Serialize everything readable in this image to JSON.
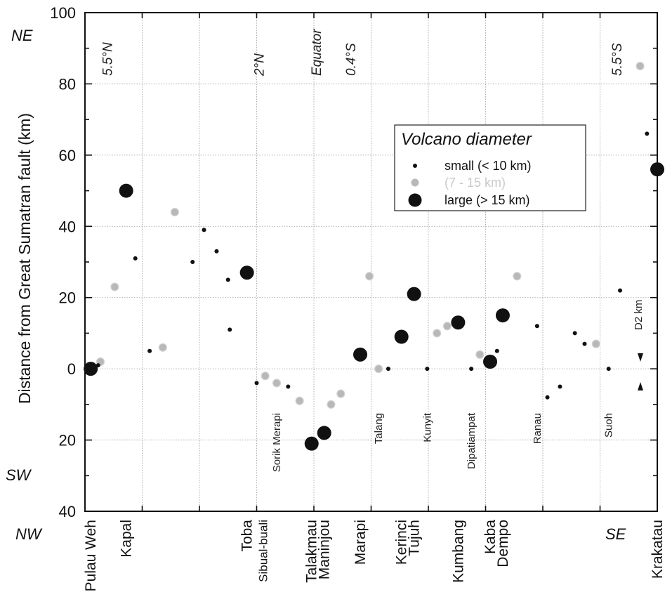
{
  "chart_data": {
    "type": "scatter",
    "ylabel": "Distance from Great Sumatran fault (km)",
    "y_ticks_top": [
      "100",
      "80",
      "60",
      "40",
      "20",
      "0"
    ],
    "y_ticks_bottom": [
      "20",
      "40"
    ],
    "ylim": [
      -40,
      100
    ],
    "direction_labels": {
      "top": "NE",
      "sw": "SW",
      "nw": "NW",
      "se": "SE"
    },
    "latitude_labels": [
      "5.5°N",
      "2°N",
      "Equator",
      "0.4°S",
      "5.5°S"
    ],
    "latitude_x": [
      0.04,
      0.305,
      0.405,
      0.465,
      0.93
    ],
    "in_plot_labels": [
      {
        "name": "Sorik Merapi",
        "x": 0.335
      },
      {
        "name": "Talang",
        "x": 0.513
      },
      {
        "name": "Kunyit",
        "x": 0.598
      },
      {
        "name": "Dipatiampat",
        "x": 0.675
      },
      {
        "name": "Ranau",
        "x": 0.79
      },
      {
        "name": "Suoh",
        "x": 0.915
      }
    ],
    "bottom_labels": [
      {
        "name": "Pulau Weh",
        "x": 0.01
      },
      {
        "name": "Kapal",
        "x": 0.072
      },
      {
        "name": "Toba",
        "x": 0.283
      },
      {
        "name": "Sibual-buali",
        "x": 0.31
      },
      {
        "name": "Talakmau",
        "x": 0.396
      },
      {
        "name": "Maninjou",
        "x": 0.418
      },
      {
        "name": "Marapi",
        "x": 0.481
      },
      {
        "name": "Kerinci",
        "x": 0.553
      },
      {
        "name": "Tujuh",
        "x": 0.575
      },
      {
        "name": "Kumbang",
        "x": 0.652
      },
      {
        "name": "Kaba",
        "x": 0.708
      },
      {
        "name": "Dempo",
        "x": 0.73
      },
      {
        "name": "Krakatau",
        "x": 1.0
      }
    ],
    "legend": {
      "title": "Volcano diameter",
      "entries": [
        {
          "label": "small (< 10 km)",
          "size": "small"
        },
        {
          "label": "(7 - 15 km)",
          "size": "medium"
        },
        {
          "label": "large (> 15 km)",
          "size": "large"
        }
      ]
    },
    "annotation": "D2 km",
    "colors": {
      "small": "#111111",
      "medium": "#b8b8b8",
      "large": "#111111",
      "grid": "#9a9a9a"
    },
    "points": [
      {
        "x": 0.01,
        "y": 0,
        "size": "large"
      },
      {
        "x": 0.027,
        "y": 2,
        "size": "medium"
      },
      {
        "x": 0.023,
        "y": 1,
        "size": "small"
      },
      {
        "x": 0.072,
        "y": 50,
        "size": "large"
      },
      {
        "x": 0.088,
        "y": 31,
        "size": "small"
      },
      {
        "x": 0.052,
        "y": 23,
        "size": "medium"
      },
      {
        "x": 0.113,
        "y": 5,
        "size": "small"
      },
      {
        "x": 0.136,
        "y": 6,
        "size": "medium"
      },
      {
        "x": 0.157,
        "y": 44,
        "size": "medium"
      },
      {
        "x": 0.188,
        "y": 30,
        "size": "small"
      },
      {
        "x": 0.208,
        "y": 39,
        "size": "small"
      },
      {
        "x": 0.23,
        "y": 33,
        "size": "small"
      },
      {
        "x": 0.25,
        "y": 25,
        "size": "small"
      },
      {
        "x": 0.253,
        "y": 11,
        "size": "small"
      },
      {
        "x": 0.283,
        "y": 27,
        "size": "large"
      },
      {
        "x": 0.3,
        "y": -4,
        "size": "small"
      },
      {
        "x": 0.315,
        "y": -2,
        "size": "medium"
      },
      {
        "x": 0.335,
        "y": -4,
        "size": "medium"
      },
      {
        "x": 0.355,
        "y": -5,
        "size": "small"
      },
      {
        "x": 0.375,
        "y": -9,
        "size": "medium"
      },
      {
        "x": 0.396,
        "y": -21,
        "size": "large"
      },
      {
        "x": 0.418,
        "y": -18,
        "size": "large"
      },
      {
        "x": 0.43,
        "y": -10,
        "size": "medium"
      },
      {
        "x": 0.447,
        "y": -7,
        "size": "medium"
      },
      {
        "x": 0.481,
        "y": 4,
        "size": "large"
      },
      {
        "x": 0.497,
        "y": 26,
        "size": "medium"
      },
      {
        "x": 0.513,
        "y": 0,
        "size": "medium"
      },
      {
        "x": 0.53,
        "y": 0,
        "size": "small"
      },
      {
        "x": 0.553,
        "y": 9,
        "size": "large"
      },
      {
        "x": 0.575,
        "y": 21,
        "size": "large"
      },
      {
        "x": 0.598,
        "y": 0,
        "size": "small"
      },
      {
        "x": 0.615,
        "y": 10,
        "size": "medium"
      },
      {
        "x": 0.633,
        "y": 12,
        "size": "medium"
      },
      {
        "x": 0.652,
        "y": 13,
        "size": "large"
      },
      {
        "x": 0.675,
        "y": 0,
        "size": "small"
      },
      {
        "x": 0.69,
        "y": 4,
        "size": "medium"
      },
      {
        "x": 0.708,
        "y": 2,
        "size": "large"
      },
      {
        "x": 0.72,
        "y": 5,
        "size": "small"
      },
      {
        "x": 0.73,
        "y": 15,
        "size": "large"
      },
      {
        "x": 0.755,
        "y": 26,
        "size": "medium"
      },
      {
        "x": 0.79,
        "y": 12,
        "size": "small"
      },
      {
        "x": 0.808,
        "y": -8,
        "size": "small"
      },
      {
        "x": 0.83,
        "y": -5,
        "size": "small"
      },
      {
        "x": 0.856,
        "y": 10,
        "size": "small"
      },
      {
        "x": 0.873,
        "y": 7,
        "size": "small"
      },
      {
        "x": 0.893,
        "y": 7,
        "size": "medium"
      },
      {
        "x": 0.915,
        "y": 0,
        "size": "small"
      },
      {
        "x": 0.935,
        "y": 22,
        "size": "small"
      },
      {
        "x": 0.97,
        "y": 85,
        "size": "medium"
      },
      {
        "x": 0.982,
        "y": 66,
        "size": "small"
      },
      {
        "x": 1.0,
        "y": 56,
        "size": "large"
      }
    ]
  }
}
